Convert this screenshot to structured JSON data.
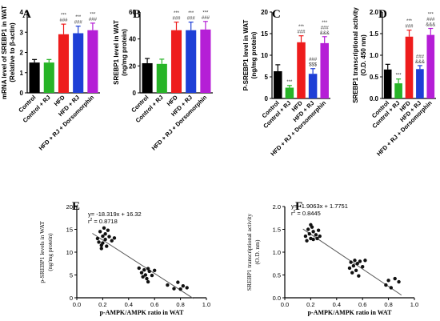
{
  "chart_data": [
    {
      "panel": "A",
      "type": "bar",
      "ylabel_lines": [
        "mRNA level of SREBP1 in WAT",
        "(Relative to β-actin)"
      ],
      "ylim": [
        0,
        4
      ],
      "yticks": [
        0,
        1,
        2,
        3,
        4
      ],
      "categories": [
        "Control",
        "Control + RJ",
        "HFD",
        "HFD + RJ",
        "HFD + RJ + Dorsomorphin"
      ],
      "values": [
        1.5,
        1.5,
        2.9,
        2.95,
        3.1
      ],
      "errors": [
        0.15,
        0.15,
        0.5,
        0.35,
        0.35
      ],
      "annotations": [
        [],
        [],
        [
          "***",
          "###"
        ],
        [
          "***",
          "###"
        ],
        [
          "***",
          "###"
        ]
      ]
    },
    {
      "panel": "B",
      "type": "bar",
      "ylabel_lines": [
        "SREBP1 level in WAT",
        "(ng/mg protein)"
      ],
      "ylim": [
        0,
        60
      ],
      "yticks": [
        0,
        20,
        40,
        60
      ],
      "categories": [
        "Control",
        "Control + RJ",
        "HFD",
        "HFD + RJ",
        "HFD + RJ + Dorsomorphin"
      ],
      "values": [
        22,
        21.5,
        46.5,
        46.5,
        47
      ],
      "errors": [
        3.5,
        3.5,
        6,
        6,
        6
      ],
      "annotations": [
        [],
        [],
        [
          "***",
          "###"
        ],
        [
          "***",
          "###"
        ],
        [
          "***",
          "###"
        ]
      ]
    },
    {
      "panel": "C",
      "type": "bar",
      "ylabel_lines": [
        "P-SREBP1 level in WAT",
        "(ng/mg protein)"
      ],
      "ylim": [
        0,
        20
      ],
      "yticks": [
        0,
        5,
        10,
        15,
        20
      ],
      "categories": [
        "Control",
        "Control + RJ",
        "HFD",
        "HFD + RJ",
        "HFD + RJ + Dorsomorphin"
      ],
      "values": [
        6.3,
        2.5,
        13,
        5.7,
        12.8
      ],
      "errors": [
        1.5,
        0.5,
        1.5,
        1.2,
        1.5
      ],
      "annotations": [
        [],
        [
          "***"
        ],
        [
          "***",
          "###"
        ],
        [
          "###",
          "$$$"
        ],
        [
          "***",
          "###",
          "&&&"
        ]
      ]
    },
    {
      "panel": "D",
      "type": "bar",
      "ylabel_lines": [
        "SREBP1 transcriptional activity",
        "(O.D. 450 nm)"
      ],
      "ylim": [
        0,
        2.0
      ],
      "yticks": [
        0.0,
        0.5,
        1.0,
        1.5,
        2.0
      ],
      "categories": [
        "Control",
        "Control + RJ",
        "HFD",
        "HFD + RJ",
        "HFD + RJ + Dorsomorphin"
      ],
      "values": [
        0.67,
        0.35,
        1.43,
        0.68,
        1.47
      ],
      "errors": [
        0.12,
        0.1,
        0.15,
        0.08,
        0.15
      ],
      "annotations": [
        [],
        [
          "***"
        ],
        [
          "***",
          "###"
        ],
        [
          "###",
          "&&&"
        ],
        [
          "***",
          "###",
          "&&&"
        ]
      ]
    },
    {
      "panel": "E",
      "type": "scatter",
      "ylabel_lines": [
        "p-SREBP1 levels in  WAT",
        "(ng/mg protein)"
      ],
      "xlabel": "p-AMPK/AMPK ratio in  WAT",
      "equation": "y= -18.319x + 16.32",
      "r2_prefix": "r",
      "r2_sup": "2",
      "r2_value": "= 0.8718",
      "xlim": [
        0,
        1
      ],
      "ylim": [
        0,
        20
      ],
      "xticks": [
        0.0,
        0.2,
        0.4,
        0.6,
        0.8,
        1.0
      ],
      "yticks": [
        0,
        5,
        10,
        15,
        20
      ],
      "slope": -18.319,
      "intercept": 16.32,
      "fit_range": [
        0.12,
        0.9
      ],
      "x": [
        0.16,
        0.17,
        0.18,
        0.19,
        0.19,
        0.2,
        0.2,
        0.21,
        0.22,
        0.22,
        0.23,
        0.24,
        0.25,
        0.27,
        0.29,
        0.48,
        0.5,
        0.51,
        0.52,
        0.53,
        0.54,
        0.55,
        0.55,
        0.56,
        0.58,
        0.6,
        0.7,
        0.75,
        0.78,
        0.8,
        0.82,
        0.85
      ],
      "y": [
        13,
        12.2,
        14.5,
        11.5,
        10.8,
        13.5,
        12,
        15.3,
        14,
        12.8,
        11.3,
        14.8,
        13.4,
        12.5,
        13.1,
        6.5,
        5.5,
        4.6,
        6.1,
        5,
        4.2,
        3.5,
        6.4,
        5.8,
        4.9,
        6,
        2.8,
        2,
        3.4,
        1.9,
        2.6,
        2.2
      ]
    },
    {
      "panel": "F",
      "type": "scatter",
      "ylabel_lines": [
        "SREBP1 transcriptional activity",
        "(O.D. nm)"
      ],
      "xlabel": "p-AMPK/AMPK ratio in  WAT",
      "equation": "y= -1.9063x + 1.7751",
      "r2_prefix": "r",
      "r2_sup": "2",
      "r2_value": "= 0.8445",
      "xlim": [
        0,
        1
      ],
      "ylim": [
        0,
        2.0
      ],
      "xticks": [
        0.0,
        0.2,
        0.4,
        0.6,
        0.8,
        1.0
      ],
      "yticks": [
        0.0,
        0.5,
        1.0,
        1.5,
        2.0
      ],
      "slope": -1.9063,
      "intercept": 1.7751,
      "fit_range": [
        0.14,
        0.9
      ],
      "x": [
        0.16,
        0.17,
        0.18,
        0.19,
        0.2,
        0.2,
        0.21,
        0.22,
        0.22,
        0.24,
        0.25,
        0.26,
        0.27,
        0.5,
        0.51,
        0.52,
        0.53,
        0.54,
        0.55,
        0.56,
        0.57,
        0.58,
        0.6,
        0.62,
        0.78,
        0.8,
        0.82,
        0.85,
        0.88
      ],
      "y": [
        1.35,
        1.25,
        1.5,
        1.4,
        1.6,
        1.3,
        1.55,
        1.28,
        1.45,
        1.38,
        1.3,
        1.48,
        1.35,
        0.65,
        0.78,
        0.55,
        0.7,
        0.82,
        0.6,
        0.75,
        0.48,
        0.8,
        0.68,
        0.82,
        0.28,
        0.38,
        0.22,
        0.42,
        0.35
      ]
    }
  ],
  "colors": {
    "Control": "#000000",
    "Control + RJ": "#27b427",
    "HFD": "#ee1c1c",
    "HFD + RJ": "#1e3fd6",
    "HFD + RJ + Dorsomorphin": "#b51ed6",
    "axis": "#000000",
    "annotation": "#333333",
    "fit_line": "#555555",
    "points": "#111111"
  }
}
